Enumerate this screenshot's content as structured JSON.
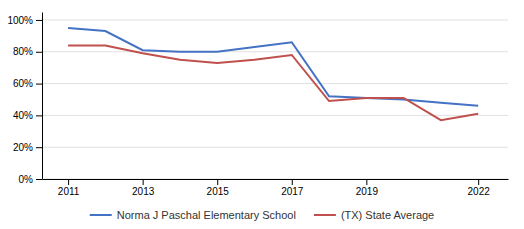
{
  "chart_data": {
    "type": "line",
    "x": [
      2011,
      2012,
      2013,
      2014,
      2015,
      2016,
      2017,
      2018,
      2019,
      2020,
      2021,
      2022
    ],
    "series": [
      {
        "name": "Norma J Paschal Elementary School",
        "color": "#4472c4",
        "values": [
          0.95,
          0.93,
          0.81,
          0.8,
          0.8,
          0.83,
          0.86,
          0.52,
          0.51,
          0.5,
          0.48,
          0.46
        ]
      },
      {
        "name": "(TX) State Average",
        "color": "#c0504d",
        "values": [
          0.84,
          0.84,
          0.79,
          0.75,
          0.73,
          0.75,
          0.78,
          0.49,
          0.51,
          0.51,
          0.37,
          0.41
        ]
      }
    ],
    "xlim": [
      2010.3,
      2022.8
    ],
    "xticks": [
      2011,
      2013,
      2015,
      2017,
      2019,
      2022
    ],
    "ylim": [
      0,
      1.05
    ],
    "yticks": [
      {
        "value": 0,
        "label": "0%"
      },
      {
        "value": 0.2,
        "label": "20%"
      },
      {
        "value": 0.4,
        "label": "40%"
      },
      {
        "value": 0.6,
        "label": "60%"
      },
      {
        "value": 0.8,
        "label": "80%"
      },
      {
        "value": 1.0,
        "label": "100%"
      }
    ],
    "grid": true,
    "legend": "bottom"
  }
}
